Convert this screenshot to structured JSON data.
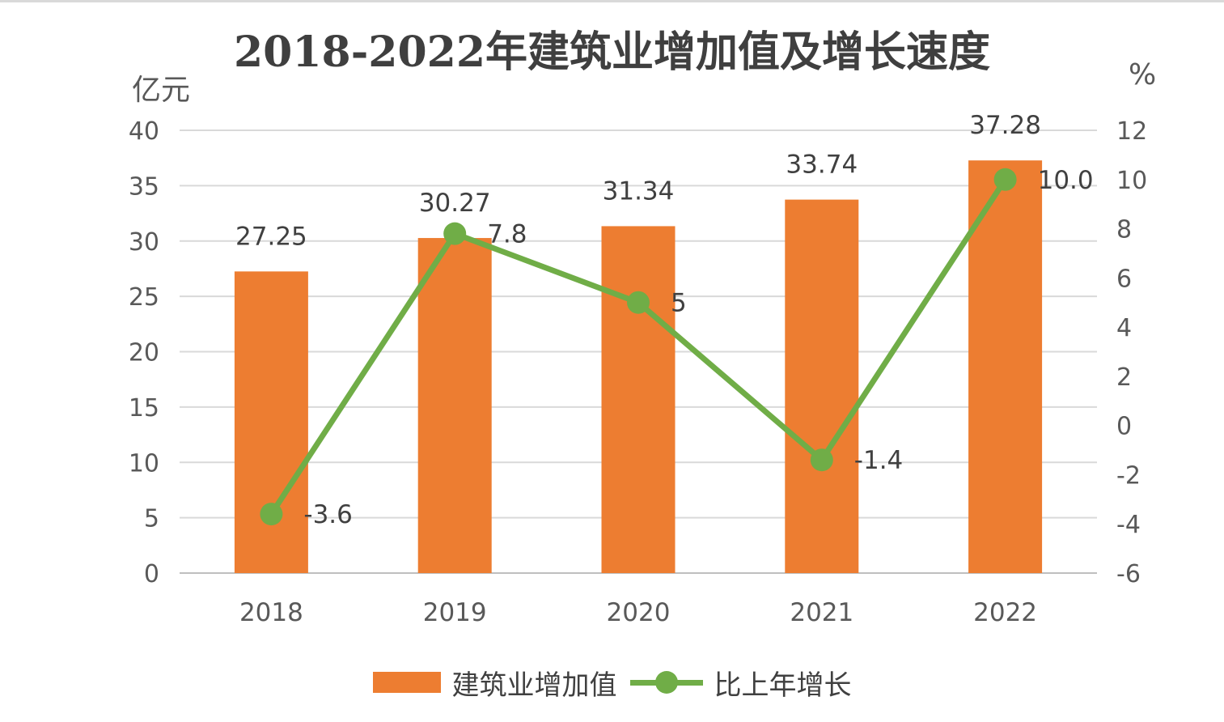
{
  "chart_data": {
    "type": "bar",
    "title": "2018-2022年建筑业增加值及增长速度",
    "categories": [
      "2018",
      "2019",
      "2020",
      "2021",
      "2022"
    ],
    "y_left": {
      "unit": "亿元",
      "min": 0,
      "max": 40,
      "ticks": [
        "0",
        "5",
        "10",
        "15",
        "20",
        "25",
        "30",
        "35",
        "40"
      ]
    },
    "y_right": {
      "unit": "%",
      "min": -6,
      "max": 12,
      "ticks": [
        "-6",
        "-4",
        "-2",
        "0",
        "2",
        "4",
        "6",
        "8",
        "10",
        "12"
      ]
    },
    "series": [
      {
        "name": "建筑业增加值",
        "type": "bar",
        "color": "#ed7d31",
        "axis": "left",
        "values": [
          27.25,
          30.27,
          31.34,
          33.74,
          37.28
        ],
        "labels": [
          "27.25",
          "30.27",
          "31.34",
          "33.74",
          "37.28"
        ]
      },
      {
        "name": "比上年增长",
        "type": "line",
        "color": "#70ad47",
        "axis": "right",
        "values": [
          -3.6,
          7.8,
          5,
          -1.4,
          10.0
        ],
        "labels": [
          "-3.6",
          "7.8",
          "5",
          "-1.4",
          "10.0"
        ]
      }
    ],
    "grid": true,
    "legend": "bottom"
  }
}
